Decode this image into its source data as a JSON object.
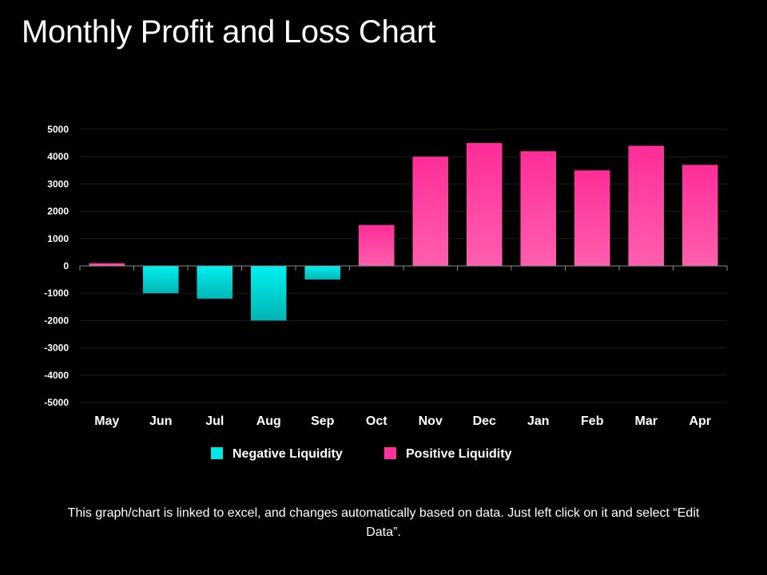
{
  "title": "Monthly Profit and Loss Chart",
  "footnote": "This graph/chart is linked to excel, and changes automatically based on data. Just left click on it and select “Edit Data”.",
  "chart_data": {
    "type": "bar",
    "title": "",
    "xlabel": "",
    "ylabel": "",
    "categories": [
      "May",
      "Jun",
      "Jul",
      "Aug",
      "Sep",
      "Oct",
      "Nov",
      "Dec",
      "Jan",
      "Feb",
      "Mar",
      "Apr"
    ],
    "values": [
      100,
      -1000,
      -1200,
      -2000,
      -500,
      1500,
      4000,
      4500,
      4200,
      3500,
      4400,
      3700
    ],
    "ylim": [
      -5000,
      5000
    ],
    "yticks": [
      5000,
      4000,
      3000,
      2000,
      1000,
      0,
      -1000,
      -2000,
      -3000,
      -4000,
      -5000
    ],
    "grid": true,
    "legend_position": "bottom",
    "legend": [
      {
        "name": "Negative Liquidity",
        "color": "#00e5e5"
      },
      {
        "name": "Positive Liquidity",
        "color": "#ff3399"
      }
    ],
    "colors": {
      "positive_top": "#ff2d98",
      "positive_bottom": "#ff5fae",
      "negative_top": "#00f0f0",
      "negative_bottom": "#00b4b4",
      "grid": "#1c1c1c",
      "axis": "#8a8a8a"
    }
  }
}
